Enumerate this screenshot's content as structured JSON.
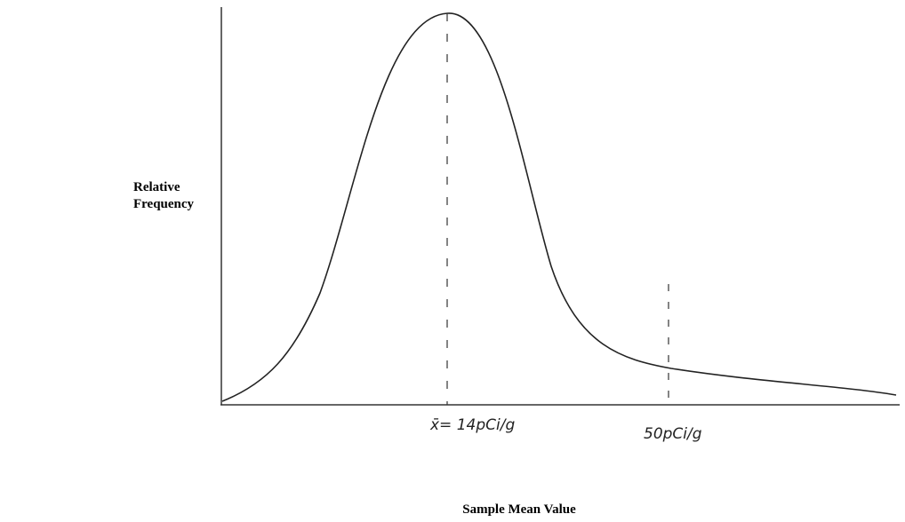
{
  "y_axis_label": [
    "Relative",
    "Frequency"
  ],
  "x_axis_label": "Sample Mean Value",
  "annotations": {
    "mean": "x̄= 14pCi/g",
    "threshold": "50pCi/g"
  }
}
